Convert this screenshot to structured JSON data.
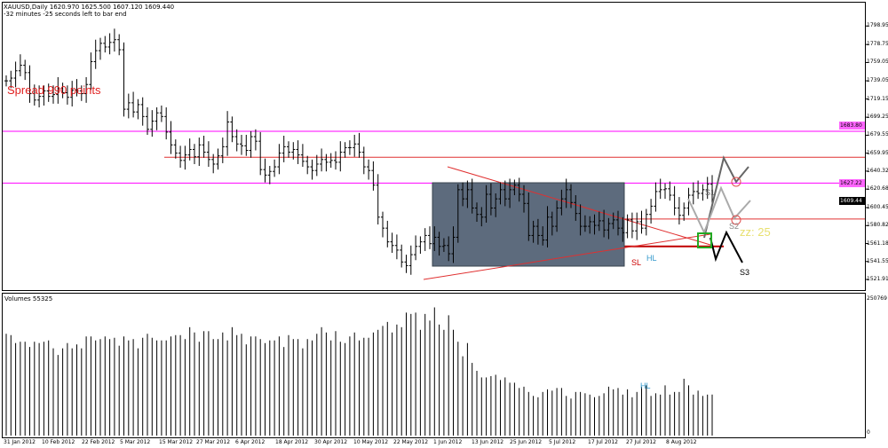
{
  "header": {
    "symbol_line": "XAUUSD,Daily  1620.970 1625.500 1607.120 1609.440",
    "timer_line": "-32 minutes -25 seconds left to bar end",
    "volume_label": "Volumes 55325"
  },
  "annotations": {
    "spread": "Spread 990 points",
    "s1": "S1",
    "s2": "S2",
    "s3": "S3",
    "hl_price": "HL",
    "hl_volume": "HL",
    "sl": "SL",
    "zz": "zz: 25"
  },
  "price_tags": {
    "magenta_upper": "1683.80",
    "magenta_lower": "1627.22",
    "current": "1609.44"
  },
  "colors": {
    "magenta": "#ff00ff",
    "red_line": "#e03030",
    "dark_red": "#c00000",
    "box_fill": "#5d6b7d",
    "hl_blue": "#3399cc",
    "green_box": "#22aa22",
    "zz_yellow": "#e8e070"
  },
  "axes": {
    "price_ticks": [
      "1798.95",
      "1778.75",
      "1759.05",
      "1739.05",
      "1719.15",
      "1699.25",
      "1679.55",
      "1659.95",
      "1640.32",
      "1620.68",
      "1600.45",
      "1580.82",
      "1561.18",
      "1541.55",
      "1521.91"
    ],
    "volume_ticks": [
      "250769",
      "0"
    ],
    "date_ticks": [
      "31 Jan 2012",
      "10 Feb 2012",
      "22 Feb 2012",
      "5 Mar 2012",
      "15 Mar 2012",
      "27 Mar 2012",
      "6 Apr 2012",
      "18 Apr 2012",
      "30 Apr 2012",
      "10 May 2012",
      "22 May 2012",
      "1 Jun 2012",
      "13 Jun 2012",
      "25 Jun 2012",
      "5 Jul 2012",
      "17 Jul 2012",
      "27 Jul 2012",
      "8 Aug 2012"
    ]
  },
  "chart_data": {
    "type": "ohlc",
    "closes": [
      1739,
      1742,
      1750,
      1756,
      1748,
      1725,
      1718,
      1722,
      1728,
      1722,
      1724,
      1731,
      1726,
      1721,
      1729,
      1728,
      1725,
      1735,
      1760,
      1772,
      1780,
      1776,
      1781,
      1784,
      1773,
      1708,
      1715,
      1705,
      1713,
      1700,
      1686,
      1695,
      1704,
      1700,
      1683,
      1669,
      1660,
      1652,
      1658,
      1664,
      1656,
      1669,
      1661,
      1653,
      1648,
      1657,
      1667,
      1694,
      1678,
      1670,
      1668,
      1663,
      1678,
      1673,
      1642,
      1636,
      1640,
      1645,
      1660,
      1667,
      1661,
      1664,
      1658,
      1651,
      1645,
      1641,
      1648,
      1653,
      1650,
      1652,
      1650,
      1661,
      1666,
      1666,
      1670,
      1661,
      1645,
      1641,
      1625,
      1590,
      1578,
      1563,
      1559,
      1554,
      1541,
      1537,
      1549,
      1558,
      1563,
      1570,
      1561,
      1568,
      1558,
      1559,
      1550,
      1568,
      1620,
      1610,
      1620,
      1600,
      1593,
      1590,
      1615,
      1600,
      1610,
      1620,
      1610,
      1620,
      1625,
      1615,
      1605,
      1570,
      1580,
      1570,
      1565,
      1590,
      1580,
      1600,
      1610,
      1620,
      1606,
      1594,
      1580,
      1580,
      1585,
      1581,
      1586,
      1576,
      1583,
      1587,
      1578,
      1573,
      1587,
      1575,
      1585,
      1578,
      1593,
      1602,
      1618,
      1620,
      1621,
      1614,
      1600,
      1592,
      1600,
      1614,
      1618,
      1616,
      1620,
      1626,
      1609
    ],
    "volumes_normalized": [
      0.77,
      0.76,
      0.7,
      0.71,
      0.71,
      0.67,
      0.71,
      0.7,
      0.71,
      0.72,
      0.66,
      0.61,
      0.66,
      0.7,
      0.66,
      0.69,
      0.66,
      0.75,
      0.75,
      0.72,
      0.73,
      0.75,
      0.73,
      0.74,
      0.68,
      0.75,
      0.72,
      0.73,
      0.66,
      0.74,
      0.77,
      0.74,
      0.72,
      0.72,
      0.72,
      0.75,
      0.76,
      0.76,
      0.73,
      0.82,
      0.78,
      0.71,
      0.79,
      0.79,
      0.73,
      0.73,
      0.78,
      0.72,
      0.82,
      0.76,
      0.77,
      0.69,
      0.75,
      0.75,
      0.73,
      0.7,
      0.72,
      0.72,
      0.75,
      0.67,
      0.76,
      0.73,
      0.73,
      0.66,
      0.73,
      0.72,
      0.77,
      0.82,
      0.78,
      0.72,
      0.79,
      0.71,
      0.7,
      0.75,
      0.78,
      0.72,
      0.74,
      0.74,
      0.78,
      0.8,
      0.83,
      0.86,
      0.78,
      0.84,
      0.82,
      0.93,
      0.92,
      0.93,
      0.8,
      0.92,
      0.87,
      0.97,
      0.84,
      0.8,
      0.91,
      0.8,
      0.71,
      0.6,
      0.7,
      0.55,
      0.49,
      0.44,
      0.44,
      0.45,
      0.46,
      0.42,
      0.44,
      0.4,
      0.4,
      0.36,
      0.37,
      0.33,
      0.3,
      0.29,
      0.33,
      0.35,
      0.34,
      0.36,
      0.36,
      0.3,
      0.28,
      0.33,
      0.33,
      0.32,
      0.31,
      0.29,
      0.3,
      0.32,
      0.37,
      0.35,
      0.36,
      0.31,
      0.35,
      0.29,
      0.33,
      0.37,
      0.38,
      0.3,
      0.32,
      0.31,
      0.38,
      0.31,
      0.33,
      0.33,
      0.43,
      0.38,
      0.31,
      0.34,
      0.3,
      0.31,
      0.31
    ],
    "levels": {
      "magenta_upper": 1683.8,
      "red_upper": 1655.5,
      "magenta_lower": 1627.22,
      "red_hl": 1588,
      "sl": 1558
    },
    "ylim": [
      1521.91,
      1807
    ]
  }
}
